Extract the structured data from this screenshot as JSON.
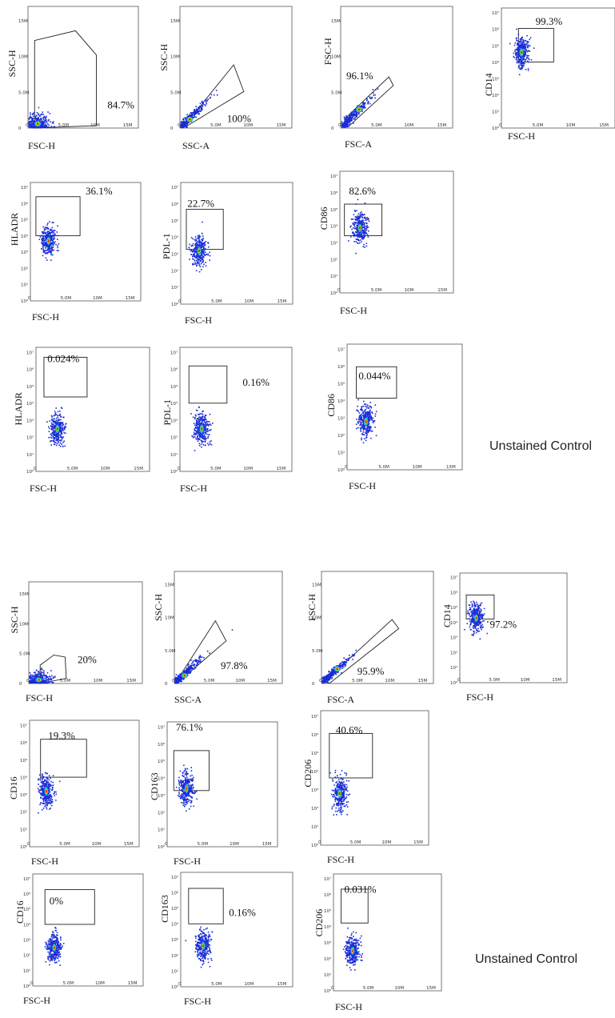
{
  "captions": {
    "top": "Unstained Control",
    "bottom": "Unstained Control"
  },
  "colors": {
    "dots": "#1a2dd6",
    "core_yellow": "#f5e400",
    "core_red": "#e02010",
    "core_green": "#1fd06a",
    "core_cyan": "#1ab8f0"
  },
  "chart_data": [
    {
      "id": "A1",
      "type": "scatter",
      "xlabel": "FSC-H",
      "ylabel": "SSC-H",
      "xscale": "linear",
      "yscale": "linear",
      "xticks": [
        "0",
        "5.0M",
        "10M",
        "15M"
      ],
      "yticks": [
        "0",
        "5.0M",
        "10M",
        "15M"
      ],
      "gate_label": "84.7%",
      "center": [
        1.5,
        0.6
      ]
    },
    {
      "id": "A2",
      "type": "scatter",
      "xlabel": "SSC-A",
      "ylabel": "SSC-H",
      "xscale": "linear",
      "yscale": "linear",
      "xticks": [
        "0",
        "5.0M",
        "10M",
        "15M"
      ],
      "yticks": [
        "0",
        "5.0M",
        "10M",
        "15M"
      ],
      "gate_label": "100%",
      "center": [
        1.5,
        1.2
      ]
    },
    {
      "id": "A3",
      "type": "scatter",
      "xlabel": "FSC-A",
      "ylabel": "FSC-H",
      "xscale": "linear",
      "yscale": "linear",
      "xticks": [
        "0",
        "5.0M",
        "10M",
        "15M"
      ],
      "yticks": [
        "0",
        "5.0M",
        "10M",
        "15M"
      ],
      "gate_label": "96.1%",
      "center": [
        2.8,
        2.6
      ]
    },
    {
      "id": "A4",
      "type": "scatter",
      "xlabel": "FSC-H",
      "ylabel": "CD14",
      "xscale": "linear",
      "yscale": "log",
      "xticks": [
        "0",
        "5.0M",
        "10M",
        "15M"
      ],
      "yticks": [
        "10⁰",
        "10¹",
        "10²",
        "10³",
        "10⁴",
        "10⁵",
        "10⁶",
        "10⁷"
      ],
      "gate_label": "99.3%",
      "center": [
        3,
        4.6
      ]
    },
    {
      "id": "B1",
      "type": "scatter",
      "xlabel": "FSC-H",
      "ylabel": "HLADR",
      "xscale": "linear",
      "yscale": "log",
      "xticks": [
        "0",
        "5.0M",
        "10M",
        "15M"
      ],
      "yticks": [
        "10⁰",
        "10¹",
        "10²",
        "10³",
        "10⁴",
        "10⁵",
        "10⁶",
        "10⁷"
      ],
      "gate_label": "36.1%",
      "center": [
        2.8,
        3.7
      ]
    },
    {
      "id": "B2",
      "type": "scatter",
      "xlabel": "FSC-H",
      "ylabel": "PDL-1",
      "xscale": "linear",
      "yscale": "log",
      "xticks": [
        "0",
        "5.0M",
        "10M",
        "15M"
      ],
      "yticks": [
        "10⁰",
        "10¹",
        "10²",
        "10³",
        "10⁴",
        "10⁵",
        "10⁶",
        "10⁷"
      ],
      "gate_label": "22.7%",
      "center": [
        2.8,
        3.2
      ]
    },
    {
      "id": "B3",
      "type": "scatter",
      "xlabel": "FSC-H",
      "ylabel": "CD86",
      "xscale": "linear",
      "yscale": "log",
      "xticks": [
        "0",
        "5.0M",
        "10M",
        "15M"
      ],
      "yticks": [
        "10⁰",
        "10¹",
        "10²",
        "10³",
        "10⁴",
        "10⁵",
        "10⁶",
        "10⁷"
      ],
      "gate_label": "82.6%",
      "center": [
        3,
        3.9
      ]
    },
    {
      "id": "C1",
      "type": "scatter",
      "xlabel": "FSC-H",
      "ylabel": "HLADR",
      "xscale": "linear",
      "yscale": "log",
      "xticks": [
        "0",
        "5.0M",
        "10M",
        "15M"
      ],
      "yticks": [
        "10⁰",
        "10¹",
        "10²",
        "10³",
        "10⁴",
        "10⁵",
        "10⁶",
        "10⁷"
      ],
      "gate_label": "0.024%",
      "center": [
        3.2,
        2.5
      ]
    },
    {
      "id": "C2",
      "type": "scatter",
      "xlabel": "FSC-H",
      "ylabel": "PDL-1",
      "xscale": "linear",
      "yscale": "log",
      "xticks": [
        "0",
        "5.0M",
        "10M",
        "15M"
      ],
      "yticks": [
        "10⁰",
        "10¹",
        "10²",
        "10³",
        "10⁴",
        "10⁵",
        "10⁶",
        "10⁷"
      ],
      "gate_label": "0.16%",
      "center": [
        3.3,
        2.5
      ]
    },
    {
      "id": "C3",
      "type": "scatter",
      "xlabel": "FSC-H",
      "ylabel": "CD86",
      "xscale": "linear",
      "yscale": "log",
      "xticks": [
        "0",
        "5.0M",
        "10M",
        "15M"
      ],
      "yticks": [
        "10⁰",
        "10¹",
        "10²",
        "10³",
        "10⁴",
        "10⁵",
        "10⁶",
        "10⁷"
      ],
      "gate_label": "0.044%",
      "center": [
        2.8,
        2.8
      ]
    },
    {
      "id": "D1",
      "type": "scatter",
      "xlabel": "FSC-H",
      "ylabel": "SSC-H",
      "xscale": "linear",
      "yscale": "linear",
      "xticks": [
        "0",
        "5.0M",
        "10M",
        "15M"
      ],
      "yticks": [
        "0",
        "5.0M",
        "10M",
        "15M"
      ],
      "gate_label": "20%",
      "center": [
        1.5,
        0.6
      ]
    },
    {
      "id": "D2",
      "type": "scatter",
      "xlabel": "SSC-A",
      "ylabel": "SSC-H",
      "xscale": "linear",
      "yscale": "linear",
      "xticks": [
        "0",
        "5.0M",
        "10M",
        "15M"
      ],
      "yticks": [
        "0",
        "5.0M",
        "10M",
        "15M"
      ],
      "gate_label": "97.8%",
      "center": [
        1.6,
        1.2
      ]
    },
    {
      "id": "D3",
      "type": "scatter",
      "xlabel": "FSC-A",
      "ylabel": "FSC-H",
      "xscale": "linear",
      "yscale": "linear",
      "xticks": [
        "0",
        "5.0M",
        "10M",
        "15M"
      ],
      "yticks": [
        "0",
        "5.0M",
        "10M",
        "15M"
      ],
      "gate_label": "95.9%",
      "center": [
        2.4,
        2.2
      ]
    },
    {
      "id": "D4",
      "type": "scatter",
      "xlabel": "FSC-H",
      "ylabel": "CD14",
      "xscale": "linear",
      "yscale": "log",
      "xticks": [
        "0",
        "5.0M",
        "10M",
        "15M"
      ],
      "yticks": [
        "10⁰",
        "10¹",
        "10²",
        "10³",
        "10⁴",
        "10⁵",
        "10⁶",
        "10⁷"
      ],
      "gate_label": "97.2%",
      "center": [
        2.6,
        4.3
      ]
    },
    {
      "id": "E1",
      "type": "scatter",
      "xlabel": "FSC-H",
      "ylabel": "CD16",
      "xscale": "linear",
      "yscale": "log",
      "xticks": [
        "0",
        "5.0M",
        "10M",
        "15M"
      ],
      "yticks": [
        "10⁰",
        "10¹",
        "10²",
        "10³",
        "10⁴",
        "10⁵",
        "10⁶",
        "10⁷"
      ],
      "gate_label": "19.3%",
      "center": [
        2.6,
        3.2
      ]
    },
    {
      "id": "E2",
      "type": "scatter",
      "xlabel": "FSC-H",
      "ylabel": "CD163",
      "xscale": "linear",
      "yscale": "log",
      "xticks": [
        "0",
        "5.0M",
        "10M",
        "15M"
      ],
      "yticks": [
        "10⁰",
        "10¹",
        "10²",
        "10³",
        "10⁴",
        "10⁵",
        "10⁶",
        "10⁷"
      ],
      "gate_label": "76.1%",
      "center": [
        3,
        3.4
      ]
    },
    {
      "id": "E3",
      "type": "scatter",
      "xlabel": "FSC-H",
      "ylabel": "CD206",
      "xscale": "linear",
      "yscale": "log",
      "xticks": [
        "0",
        "5.0M",
        "10M",
        "15M"
      ],
      "yticks": [
        "10⁰",
        "10¹",
        "10²",
        "10³",
        "10⁴",
        "10⁵",
        "10⁶",
        "10⁷"
      ],
      "gate_label": "40.6%",
      "center": [
        3,
        2.8
      ]
    },
    {
      "id": "F1",
      "type": "scatter",
      "xlabel": "FSC-H",
      "ylabel": "CD16",
      "xscale": "linear",
      "yscale": "log",
      "xticks": [
        "0",
        "5.0M",
        "10M",
        "15M"
      ],
      "yticks": [
        "10⁰",
        "10¹",
        "10²",
        "10³",
        "10⁴",
        "10⁵",
        "10⁶",
        "10⁷"
      ],
      "gate_label": "0%",
      "center": [
        3.3,
        2.5
      ]
    },
    {
      "id": "F2",
      "type": "scatter",
      "xlabel": "FSC-H",
      "ylabel": "CD163",
      "xscale": "linear",
      "yscale": "log",
      "xticks": [
        "0",
        "5.0M",
        "10M",
        "15M"
      ],
      "yticks": [
        "10⁰",
        "10¹",
        "10²",
        "10³",
        "10⁴",
        "10⁵",
        "10⁶",
        "10⁷"
      ],
      "gate_label": "0.16%",
      "center": [
        3.4,
        2.6
      ]
    },
    {
      "id": "F3",
      "type": "scatter",
      "xlabel": "FSC-H",
      "ylabel": "CD206",
      "xscale": "linear",
      "yscale": "log",
      "xticks": [
        "0",
        "5.0M",
        "10M",
        "15M"
      ],
      "yticks": [
        "10⁰",
        "10¹",
        "10²",
        "10³",
        "10⁴",
        "10⁵",
        "10⁶",
        "10⁷"
      ],
      "gate_label": "0.031%",
      "center": [
        3,
        2.5
      ]
    }
  ]
}
